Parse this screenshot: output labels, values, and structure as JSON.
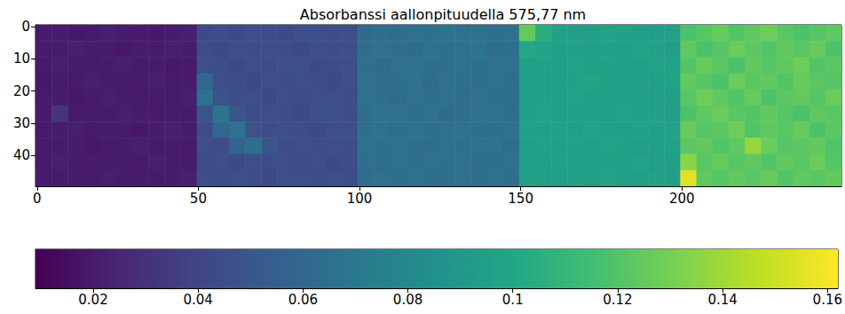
{
  "chart_data": {
    "type": "heatmap",
    "title": "Absorbanssi aallonpituudella 575,77 nm",
    "xlim": [
      -0.5,
      249.5
    ],
    "xticks": [
      0,
      50,
      100,
      150,
      200
    ],
    "ylim": [
      49.5,
      -0.5
    ],
    "yticks": [
      0,
      10,
      20,
      30,
      40
    ],
    "x_edges": [
      -0.5,
      4.5,
      9.5,
      14.5,
      19.5,
      24.5,
      29.5,
      34.5,
      39.5,
      44.5,
      49.5,
      54.5,
      59.5,
      64.5,
      69.5,
      74.5,
      79.5,
      84.5,
      89.5,
      94.5,
      99.5,
      104.5,
      109.5,
      114.5,
      119.5,
      124.5,
      129.5,
      134.5,
      139.5,
      144.5,
      149.5,
      154.5,
      159.5,
      164.5,
      169.5,
      174.5,
      179.5,
      184.5,
      189.5,
      194.5,
      199.5,
      204.5,
      209.5,
      214.5,
      219.5,
      224.5,
      229.5,
      234.5,
      239.5,
      244.5,
      249.5
    ],
    "y_edges": [
      -0.5,
      4.5,
      9.5,
      14.5,
      19.5,
      24.5,
      29.5,
      34.5,
      39.5,
      44.5,
      49.5
    ],
    "cells": [
      [
        0.02,
        0.021,
        0.019,
        0.02,
        0.022,
        0.021,
        0.02,
        0.019,
        0.021,
        0.022,
        0.042,
        0.044,
        0.043,
        0.045,
        0.044,
        0.043,
        0.045,
        0.046,
        0.044,
        0.045,
        0.062,
        0.064,
        0.063,
        0.066,
        0.064,
        0.068,
        0.065,
        0.066,
        0.064,
        0.065,
        0.125,
        0.105,
        0.096,
        0.094,
        0.095,
        0.097,
        0.096,
        0.095,
        0.094,
        0.096,
        0.118,
        0.122,
        0.126,
        0.12,
        0.124,
        0.128,
        0.122,
        0.119,
        0.121,
        0.124
      ],
      [
        0.021,
        0.02,
        0.022,
        0.021,
        0.02,
        0.019,
        0.021,
        0.02,
        0.022,
        0.021,
        0.044,
        0.043,
        0.045,
        0.044,
        0.046,
        0.044,
        0.043,
        0.045,
        0.044,
        0.046,
        0.063,
        0.065,
        0.064,
        0.062,
        0.066,
        0.064,
        0.065,
        0.067,
        0.063,
        0.064,
        0.1,
        0.097,
        0.095,
        0.096,
        0.094,
        0.096,
        0.095,
        0.097,
        0.096,
        0.094,
        0.124,
        0.118,
        0.121,
        0.127,
        0.123,
        0.12,
        0.125,
        0.122,
        0.126,
        0.119
      ],
      [
        0.02,
        0.022,
        0.021,
        0.02,
        0.021,
        0.022,
        0.02,
        0.021,
        0.019,
        0.02,
        0.046,
        0.044,
        0.043,
        0.045,
        0.044,
        0.046,
        0.045,
        0.043,
        0.044,
        0.045,
        0.064,
        0.062,
        0.065,
        0.066,
        0.064,
        0.063,
        0.065,
        0.064,
        0.066,
        0.065,
        0.095,
        0.096,
        0.094,
        0.097,
        0.095,
        0.096,
        0.094,
        0.095,
        0.097,
        0.096,
        0.12,
        0.126,
        0.123,
        0.118,
        0.125,
        0.121,
        0.124,
        0.128,
        0.12,
        0.123
      ],
      [
        0.019,
        0.021,
        0.02,
        0.022,
        0.021,
        0.02,
        0.021,
        0.022,
        0.02,
        0.021,
        0.06,
        0.045,
        0.044,
        0.043,
        0.045,
        0.044,
        0.046,
        0.044,
        0.043,
        0.045,
        0.065,
        0.063,
        0.064,
        0.066,
        0.062,
        0.065,
        0.064,
        0.063,
        0.065,
        0.064,
        0.096,
        0.094,
        0.095,
        0.096,
        0.098,
        0.095,
        0.096,
        0.094,
        0.095,
        0.097,
        0.125,
        0.121,
        0.119,
        0.127,
        0.122,
        0.124,
        0.12,
        0.126,
        0.123,
        0.121
      ],
      [
        0.02,
        0.021,
        0.019,
        0.02,
        0.022,
        0.021,
        0.02,
        0.021,
        0.02,
        0.022,
        0.066,
        0.048,
        0.044,
        0.045,
        0.043,
        0.045,
        0.044,
        0.046,
        0.045,
        0.044,
        0.066,
        0.064,
        0.062,
        0.065,
        0.064,
        0.066,
        0.063,
        0.065,
        0.064,
        0.063,
        0.094,
        0.096,
        0.095,
        0.097,
        0.094,
        0.096,
        0.095,
        0.096,
        0.094,
        0.095,
        0.122,
        0.128,
        0.124,
        0.12,
        0.126,
        0.119,
        0.123,
        0.125,
        0.121,
        0.127
      ],
      [
        0.021,
        0.032,
        0.02,
        0.021,
        0.02,
        0.022,
        0.021,
        0.02,
        0.021,
        0.02,
        0.05,
        0.068,
        0.05,
        0.044,
        0.045,
        0.044,
        0.043,
        0.045,
        0.046,
        0.044,
        0.063,
        0.065,
        0.066,
        0.064,
        0.065,
        0.062,
        0.064,
        0.066,
        0.065,
        0.064,
        0.095,
        0.097,
        0.094,
        0.095,
        0.096,
        0.094,
        0.097,
        0.095,
        0.096,
        0.094,
        0.119,
        0.124,
        0.127,
        0.122,
        0.12,
        0.125,
        0.121,
        0.118,
        0.124,
        0.122
      ],
      [
        0.02,
        0.021,
        0.022,
        0.02,
        0.021,
        0.02,
        0.019,
        0.021,
        0.022,
        0.021,
        0.044,
        0.06,
        0.066,
        0.048,
        0.044,
        0.045,
        0.044,
        0.043,
        0.045,
        0.046,
        0.064,
        0.066,
        0.063,
        0.065,
        0.064,
        0.065,
        0.066,
        0.063,
        0.064,
        0.065,
        0.096,
        0.095,
        0.096,
        0.094,
        0.097,
        0.095,
        0.094,
        0.096,
        0.095,
        0.097,
        0.126,
        0.121,
        0.123,
        0.128,
        0.12,
        0.124,
        0.122,
        0.126,
        0.119,
        0.123
      ],
      [
        0.021,
        0.02,
        0.021,
        0.019,
        0.02,
        0.021,
        0.022,
        0.02,
        0.021,
        0.02,
        0.045,
        0.044,
        0.058,
        0.064,
        0.05,
        0.044,
        0.045,
        0.044,
        0.046,
        0.044,
        0.065,
        0.064,
        0.066,
        0.064,
        0.063,
        0.065,
        0.064,
        0.066,
        0.065,
        0.063,
        0.094,
        0.096,
        0.095,
        0.096,
        0.095,
        0.097,
        0.096,
        0.094,
        0.095,
        0.096,
        0.123,
        0.125,
        0.12,
        0.124,
        0.138,
        0.127,
        0.121,
        0.123,
        0.125,
        0.12
      ],
      [
        0.02,
        0.022,
        0.02,
        0.021,
        0.02,
        0.021,
        0.02,
        0.022,
        0.021,
        0.02,
        0.044,
        0.045,
        0.043,
        0.046,
        0.044,
        0.045,
        0.044,
        0.045,
        0.043,
        0.044,
        0.064,
        0.063,
        0.065,
        0.064,
        0.066,
        0.064,
        0.065,
        0.063,
        0.064,
        0.066,
        0.095,
        0.094,
        0.096,
        0.095,
        0.094,
        0.096,
        0.095,
        0.097,
        0.094,
        0.095,
        0.135,
        0.122,
        0.126,
        0.121,
        0.124,
        0.12,
        0.125,
        0.122,
        0.127,
        0.121
      ],
      [
        0.021,
        0.02,
        0.021,
        0.02,
        0.022,
        0.02,
        0.021,
        0.02,
        0.021,
        0.022,
        0.045,
        0.044,
        0.045,
        0.044,
        0.043,
        0.046,
        0.045,
        0.044,
        0.045,
        0.044,
        0.063,
        0.065,
        0.064,
        0.066,
        0.064,
        0.063,
        0.065,
        0.064,
        0.066,
        0.064,
        0.096,
        0.095,
        0.094,
        0.096,
        0.095,
        0.097,
        0.095,
        0.094,
        0.096,
        0.095,
        0.155,
        0.124,
        0.121,
        0.125,
        0.122,
        0.126,
        0.12,
        0.124,
        0.122,
        0.125
      ]
    ],
    "colorbar": {
      "range": [
        0.009,
        0.162
      ],
      "ticks": [
        0.02,
        0.04,
        0.06,
        0.08,
        0.1,
        0.12,
        0.14,
        0.16
      ]
    }
  }
}
